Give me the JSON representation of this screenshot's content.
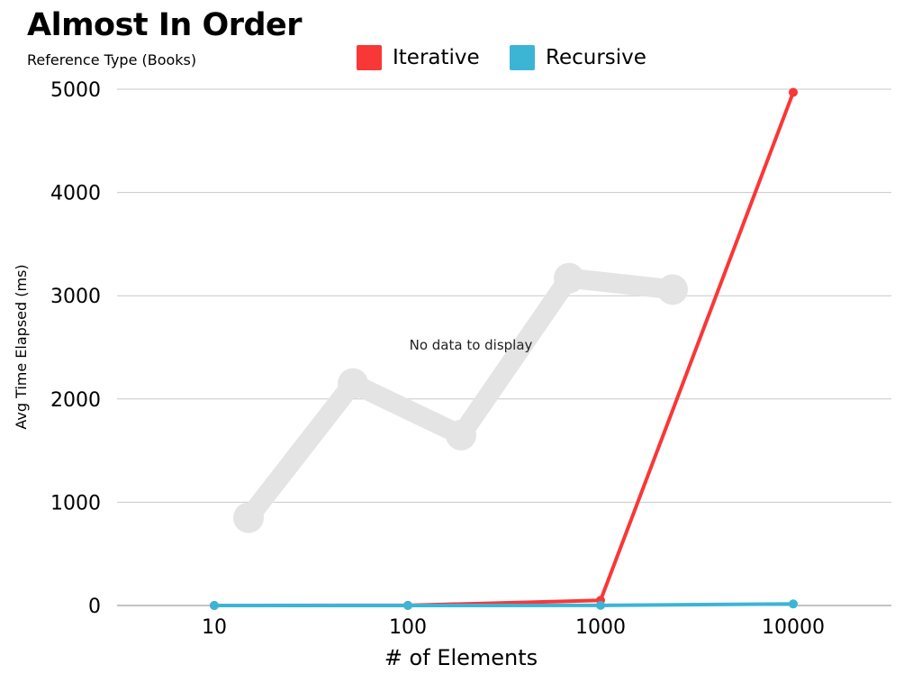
{
  "chart_data": {
    "type": "line",
    "title": "Almost In Order",
    "subtitle": "Reference Type (Books)",
    "xlabel": "# of Elements",
    "ylabel": "Avg Time Elapsed (ms)",
    "categories": [
      "10",
      "100",
      "1000",
      "10000"
    ],
    "ylim": [
      0,
      5000
    ],
    "yticks": [
      0,
      1000,
      2000,
      3000,
      4000,
      5000
    ],
    "grid": true,
    "legend_position": "top",
    "series": [
      {
        "name": "Iterative",
        "color": "#f93737",
        "values": [
          0,
          1,
          50,
          4970
        ]
      },
      {
        "name": "Recursive",
        "color": "#3cb5d5",
        "values": [
          0,
          0,
          1,
          15
        ]
      }
    ],
    "watermark": {
      "text": "No data to display",
      "color": "#e4e4e4",
      "values": [
        850,
        2150,
        1650,
        3170,
        3060
      ]
    }
  }
}
